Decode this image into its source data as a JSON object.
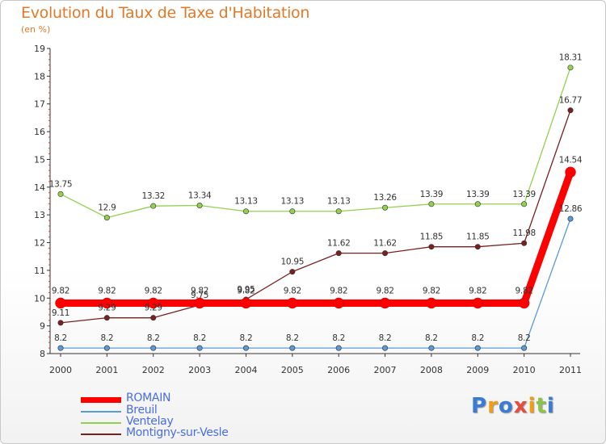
{
  "title": "Evolution du Taux de Taxe d'Habitation",
  "subtitle": "(en %)",
  "logo_text": "Proxiti",
  "chart_data": {
    "type": "line",
    "title": "Evolution du Taux de Taxe d'Habitation",
    "ylabel": "(en %)",
    "xlabel": "",
    "x": [
      "2000",
      "2001",
      "2002",
      "2003",
      "2004",
      "2005",
      "2006",
      "2007",
      "2008",
      "2009",
      "2010",
      "2011"
    ],
    "ylim": [
      8,
      19
    ],
    "yticks": [
      "8",
      "9",
      "10",
      "11",
      "12",
      "13",
      "14",
      "15",
      "16",
      "17",
      "18",
      "19"
    ],
    "grid": false,
    "legend_position": "bottom-left",
    "series": [
      {
        "name": "ROMAIN",
        "color": "#ff0000",
        "values": [
          9.82,
          9.82,
          9.82,
          9.82,
          9.82,
          9.82,
          9.82,
          9.82,
          9.82,
          9.82,
          9.82,
          14.54
        ],
        "labels": [
          "9.82",
          "9.82",
          "9.82",
          "9.82",
          "9.82",
          "9.82",
          "9.82",
          "9.82",
          "9.82",
          "9.82",
          "9.82",
          "14.54"
        ]
      },
      {
        "name": "Breuil",
        "color": "#5b9bd5",
        "values": [
          8.2,
          8.2,
          8.2,
          8.2,
          8.2,
          8.2,
          8.2,
          8.2,
          8.2,
          8.2,
          8.2,
          12.86
        ],
        "labels": [
          "8.2",
          "8.2",
          "8.2",
          "8.2",
          "8.2",
          "8.2",
          "8.2",
          "8.2",
          "8.2",
          "8.2",
          "8.2",
          "12.86"
        ]
      },
      {
        "name": "Ventelay",
        "color": "#92d050",
        "values": [
          13.75,
          12.9,
          13.32,
          13.34,
          13.13,
          13.13,
          13.13,
          13.26,
          13.39,
          13.39,
          13.39,
          18.31
        ],
        "labels": [
          "13.75",
          "12.9",
          "13.32",
          "13.34",
          "13.13",
          "13.13",
          "13.13",
          "13.26",
          "13.39",
          "13.39",
          "13.39",
          "18.31"
        ]
      },
      {
        "name": "Montigny-sur-Vesle",
        "color": "#7b2020",
        "values": [
          9.11,
          9.29,
          9.29,
          9.75,
          9.95,
          10.95,
          11.62,
          11.62,
          11.85,
          11.85,
          11.98,
          16.77
        ],
        "labels": [
          "9.11",
          "9.29",
          "9.29",
          "9.75",
          "9.95",
          "10.95",
          "11.62",
          "11.62",
          "11.85",
          "11.85",
          "11.98",
          "16.77"
        ]
      }
    ]
  }
}
